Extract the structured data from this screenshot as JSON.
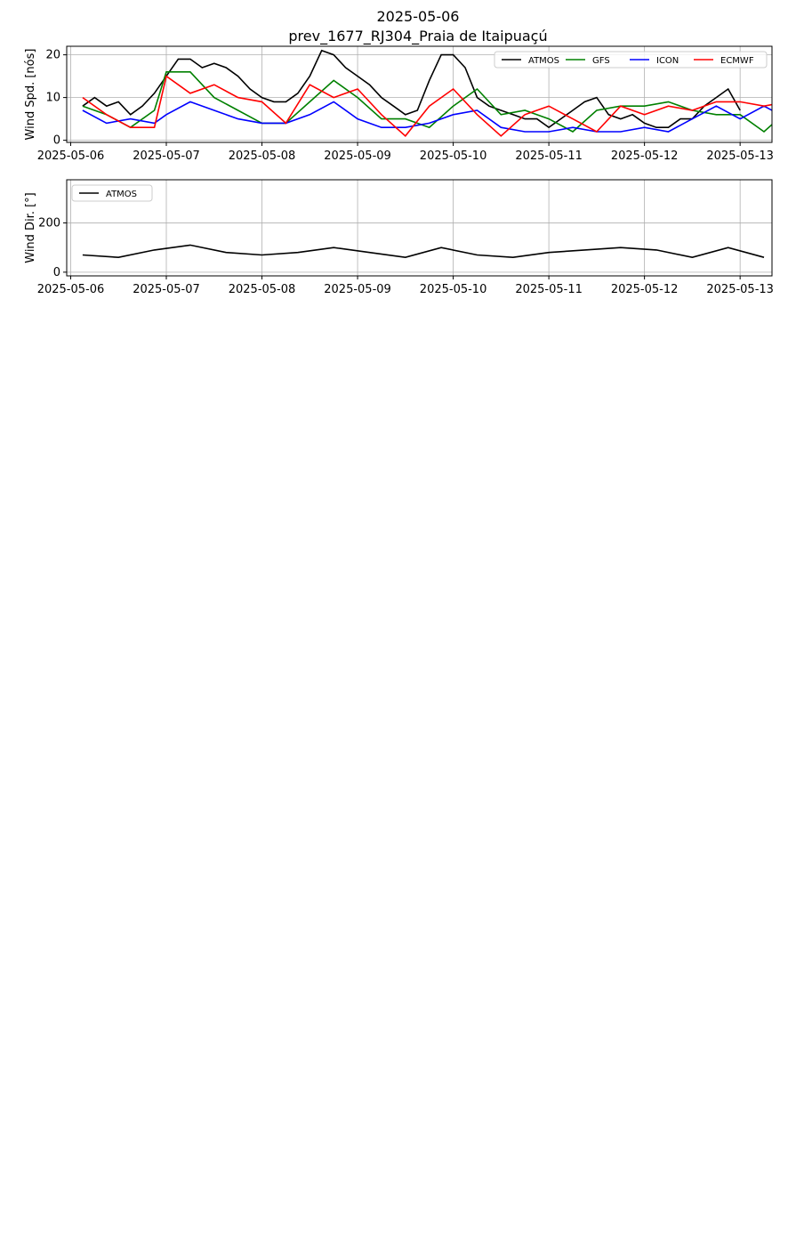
{
  "figure": {
    "title_line1": "2025-05-06",
    "title_line2": "prev_1677_RJ304_Praia de Itaipuaçú"
  },
  "colors": {
    "ATMOS": "#000000",
    "GFS": "#008000",
    "ICON": "#0000ff",
    "ECMWF": "#ff0000"
  },
  "chart_data": [
    {
      "type": "line",
      "ylabel": "Wind Spd. [nós]",
      "ylim": [
        -0.5,
        22
      ],
      "yticks": [
        0,
        10,
        20
      ],
      "xlim": [
        "2025-05-05T23:00",
        "2025-05-13T08:00"
      ],
      "xticks": [
        "2025-05-06",
        "2025-05-07",
        "2025-05-08",
        "2025-05-09",
        "2025-05-10",
        "2025-05-11",
        "2025-05-12",
        "2025-05-13"
      ],
      "grid": true,
      "legend": "top-right",
      "legend_cols": 4,
      "series": [
        {
          "name": "ATMOS",
          "points": [
            [
              "2025-05-06T03:00",
              8
            ],
            [
              "2025-05-06T06:00",
              10
            ],
            [
              "2025-05-06T09:00",
              8
            ],
            [
              "2025-05-06T12:00",
              9
            ],
            [
              "2025-05-06T15:00",
              6
            ],
            [
              "2025-05-06T18:00",
              8
            ],
            [
              "2025-05-06T21:00",
              11
            ],
            [
              "2025-05-07T00:00",
              15
            ],
            [
              "2025-05-07T03:00",
              19
            ],
            [
              "2025-05-07T06:00",
              19
            ],
            [
              "2025-05-07T09:00",
              17
            ],
            [
              "2025-05-07T12:00",
              18
            ],
            [
              "2025-05-07T15:00",
              17
            ],
            [
              "2025-05-07T18:00",
              15
            ],
            [
              "2025-05-07T21:00",
              12
            ],
            [
              "2025-05-08T00:00",
              10
            ],
            [
              "2025-05-08T03:00",
              9
            ],
            [
              "2025-05-08T06:00",
              9
            ],
            [
              "2025-05-08T09:00",
              11
            ],
            [
              "2025-05-08T12:00",
              15
            ],
            [
              "2025-05-08T15:00",
              21
            ],
            [
              "2025-05-08T18:00",
              20
            ],
            [
              "2025-05-08T21:00",
              17
            ],
            [
              "2025-05-09T00:00",
              15
            ],
            [
              "2025-05-09T03:00",
              13
            ],
            [
              "2025-05-09T06:00",
              10
            ],
            [
              "2025-05-09T09:00",
              8
            ],
            [
              "2025-05-09T12:00",
              6
            ],
            [
              "2025-05-09T15:00",
              7
            ],
            [
              "2025-05-09T18:00",
              14
            ],
            [
              "2025-05-09T21:00",
              20
            ],
            [
              "2025-05-10T00:00",
              20
            ],
            [
              "2025-05-10T03:00",
              17
            ],
            [
              "2025-05-10T06:00",
              10
            ],
            [
              "2025-05-10T09:00",
              8
            ],
            [
              "2025-05-10T12:00",
              7
            ],
            [
              "2025-05-10T15:00",
              6
            ],
            [
              "2025-05-10T18:00",
              5
            ],
            [
              "2025-05-10T21:00",
              5
            ],
            [
              "2025-05-11T00:00",
              3
            ],
            [
              "2025-05-11T03:00",
              5
            ],
            [
              "2025-05-11T06:00",
              7
            ],
            [
              "2025-05-11T09:00",
              9
            ],
            [
              "2025-05-11T12:00",
              10
            ],
            [
              "2025-05-11T15:00",
              6
            ],
            [
              "2025-05-11T18:00",
              5
            ],
            [
              "2025-05-11T21:00",
              6
            ],
            [
              "2025-05-12T00:00",
              4
            ],
            [
              "2025-05-12T03:00",
              3
            ],
            [
              "2025-05-12T06:00",
              3
            ],
            [
              "2025-05-12T09:00",
              5
            ],
            [
              "2025-05-12T12:00",
              5
            ],
            [
              "2025-05-12T15:00",
              8
            ],
            [
              "2025-05-12T18:00",
              10
            ],
            [
              "2025-05-12T21:00",
              12
            ],
            [
              "2025-05-13T00:00",
              7
            ]
          ]
        },
        {
          "name": "GFS",
          "points": [
            [
              "2025-05-06T03:00",
              8
            ],
            [
              "2025-05-06T09:00",
              6
            ],
            [
              "2025-05-06T15:00",
              3
            ],
            [
              "2025-05-06T21:00",
              7
            ],
            [
              "2025-05-07T00:00",
              16
            ],
            [
              "2025-05-07T06:00",
              16
            ],
            [
              "2025-05-07T12:00",
              10
            ],
            [
              "2025-05-07T18:00",
              7
            ],
            [
              "2025-05-08T00:00",
              4
            ],
            [
              "2025-05-08T06:00",
              4
            ],
            [
              "2025-05-08T12:00",
              9
            ],
            [
              "2025-05-08T18:00",
              14
            ],
            [
              "2025-05-09T00:00",
              10
            ],
            [
              "2025-05-09T06:00",
              5
            ],
            [
              "2025-05-09T12:00",
              5
            ],
            [
              "2025-05-09T18:00",
              3
            ],
            [
              "2025-05-10T00:00",
              8
            ],
            [
              "2025-05-10T06:00",
              12
            ],
            [
              "2025-05-10T12:00",
              6
            ],
            [
              "2025-05-10T18:00",
              7
            ],
            [
              "2025-05-11T00:00",
              5
            ],
            [
              "2025-05-11T06:00",
              2
            ],
            [
              "2025-05-11T12:00",
              7
            ],
            [
              "2025-05-11T18:00",
              8
            ],
            [
              "2025-05-12T00:00",
              8
            ],
            [
              "2025-05-12T06:00",
              9
            ],
            [
              "2025-05-12T12:00",
              7
            ],
            [
              "2025-05-12T18:00",
              6
            ],
            [
              "2025-05-13T00:00",
              6
            ],
            [
              "2025-05-13T06:00",
              2
            ],
            [
              "2025-05-13T12:00",
              7
            ]
          ]
        },
        {
          "name": "ICON",
          "points": [
            [
              "2025-05-06T03:00",
              7
            ],
            [
              "2025-05-06T09:00",
              4
            ],
            [
              "2025-05-06T15:00",
              5
            ],
            [
              "2025-05-06T21:00",
              4
            ],
            [
              "2025-05-07T00:00",
              6
            ],
            [
              "2025-05-07T06:00",
              9
            ],
            [
              "2025-05-07T12:00",
              7
            ],
            [
              "2025-05-07T18:00",
              5
            ],
            [
              "2025-05-08T00:00",
              4
            ],
            [
              "2025-05-08T06:00",
              4
            ],
            [
              "2025-05-08T12:00",
              6
            ],
            [
              "2025-05-08T18:00",
              9
            ],
            [
              "2025-05-09T00:00",
              5
            ],
            [
              "2025-05-09T06:00",
              3
            ],
            [
              "2025-05-09T12:00",
              3
            ],
            [
              "2025-05-09T18:00",
              4
            ],
            [
              "2025-05-10T00:00",
              6
            ],
            [
              "2025-05-10T06:00",
              7
            ],
            [
              "2025-05-10T12:00",
              3
            ],
            [
              "2025-05-10T18:00",
              2
            ],
            [
              "2025-05-11T00:00",
              2
            ],
            [
              "2025-05-11T06:00",
              3
            ],
            [
              "2025-05-11T12:00",
              2
            ],
            [
              "2025-05-11T18:00",
              2
            ],
            [
              "2025-05-12T00:00",
              3
            ],
            [
              "2025-05-12T06:00",
              2
            ],
            [
              "2025-05-12T12:00",
              5
            ],
            [
              "2025-05-12T18:00",
              8
            ],
            [
              "2025-05-13T00:00",
              5
            ],
            [
              "2025-05-13T06:00",
              8
            ],
            [
              "2025-05-13T12:00",
              5
            ]
          ]
        },
        {
          "name": "ECMWF",
          "points": [
            [
              "2025-05-06T03:00",
              10
            ],
            [
              "2025-05-06T09:00",
              6
            ],
            [
              "2025-05-06T15:00",
              3
            ],
            [
              "2025-05-06T21:00",
              3
            ],
            [
              "2025-05-07T00:00",
              15
            ],
            [
              "2025-05-07T06:00",
              11
            ],
            [
              "2025-05-07T12:00",
              13
            ],
            [
              "2025-05-07T18:00",
              10
            ],
            [
              "2025-05-08T00:00",
              9
            ],
            [
              "2025-05-08T06:00",
              4
            ],
            [
              "2025-05-08T12:00",
              13
            ],
            [
              "2025-05-08T18:00",
              10
            ],
            [
              "2025-05-09T00:00",
              12
            ],
            [
              "2025-05-09T06:00",
              6
            ],
            [
              "2025-05-09T12:00",
              1
            ],
            [
              "2025-05-09T18:00",
              8
            ],
            [
              "2025-05-10T00:00",
              12
            ],
            [
              "2025-05-10T06:00",
              6
            ],
            [
              "2025-05-10T12:00",
              1
            ],
            [
              "2025-05-10T18:00",
              6
            ],
            [
              "2025-05-11T00:00",
              8
            ],
            [
              "2025-05-11T06:00",
              5
            ],
            [
              "2025-05-11T12:00",
              2
            ],
            [
              "2025-05-11T18:00",
              8
            ],
            [
              "2025-05-12T00:00",
              6
            ],
            [
              "2025-05-12T06:00",
              8
            ],
            [
              "2025-05-12T12:00",
              7
            ],
            [
              "2025-05-12T18:00",
              9
            ],
            [
              "2025-05-13T00:00",
              9
            ],
            [
              "2025-05-13T06:00",
              8
            ],
            [
              "2025-05-13T12:00",
              9
            ]
          ]
        }
      ]
    },
    {
      "type": "line",
      "ylabel": "Wind Dir. [°]",
      "ylim": [
        -15,
        375
      ],
      "yticks": [
        0,
        200
      ],
      "xlim": [
        "2025-05-05T23:00",
        "2025-05-13T08:00"
      ],
      "xticks": [
        "2025-05-06",
        "2025-05-07",
        "2025-05-08",
        "2025-05-09",
        "2025-05-10",
        "2025-05-11",
        "2025-05-12",
        "2025-05-13"
      ],
      "grid": true,
      "legend": "top-left",
      "legend_cols": 4,
      "series": [
        {
          "name": "ATMOS",
          "points": [
            [
              "2025-05-06T03:00",
              70
            ],
            [
              "2025-05-06T12:00",
              60
            ],
            [
              "2025-05-06T21:00",
              90
            ],
            [
              "2025-05-07T06:00",
              110
            ],
            [
              "2025-05-07T15:00",
              80
            ],
            [
              "2025-05-08T00:00",
              70
            ],
            [
              "2025-05-08T09:00",
              80
            ],
            [
              "2025-05-08T18:00",
              100
            ],
            [
              "2025-05-09T03:00",
              80
            ],
            [
              "2025-05-09T12:00",
              60
            ],
            [
              "2025-05-09T21:00",
              100
            ],
            [
              "2025-05-10T06:00",
              70
            ],
            [
              "2025-05-10T15:00",
              60
            ],
            [
              "2025-05-11T00:00",
              80
            ],
            [
              "2025-05-11T09:00",
              90
            ],
            [
              "2025-05-11T18:00",
              100
            ],
            [
              "2025-05-12T03:00",
              90
            ],
            [
              "2025-05-12T12:00",
              60
            ],
            [
              "2025-05-12T21:00",
              100
            ],
            [
              "2025-05-13T06:00",
              60
            ]
          ]
        }
      ]
    }
  ]
}
